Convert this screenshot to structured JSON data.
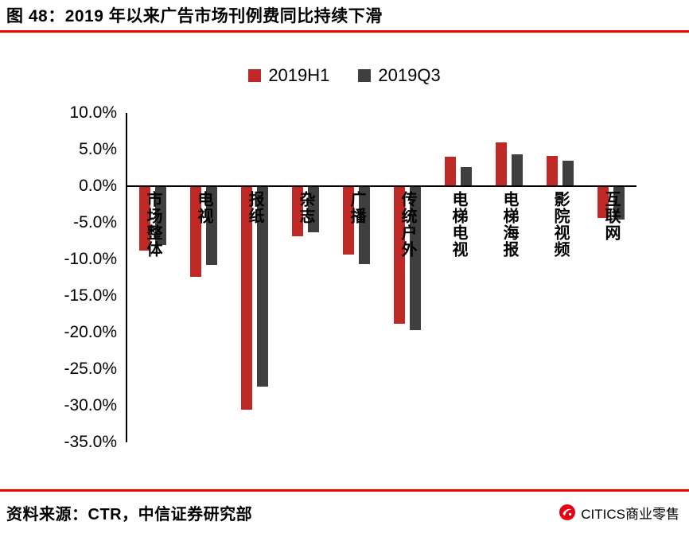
{
  "header": {
    "title": "图 48：2019 年以来广告市场刊例费同比持续下滑"
  },
  "footer": {
    "source": "资料来源：CTR，中信证券研究部",
    "logo_text": "CITICS商业零售"
  },
  "colors": {
    "accent": "#f70000",
    "series": [
      "#bf2825",
      "#3f3f3f"
    ],
    "axis": "#000000"
  },
  "chart_data": {
    "type": "bar",
    "title": "2019 年以来广告市场刊例费同比持续下滑",
    "categories": [
      "市场整体",
      "电视",
      "报纸",
      "杂志",
      "广播",
      "传统户外",
      "电梯电视",
      "电梯海报",
      "影院视频",
      "互联网"
    ],
    "series": [
      {
        "name": "2019H1",
        "values": [
          -8.8,
          -12.4,
          -30.5,
          -6.8,
          -9.4,
          -18.8,
          4.0,
          6.0,
          4.1,
          -4.3
        ]
      },
      {
        "name": "2019Q3",
        "values": [
          -8.0,
          -10.8,
          -27.4,
          -6.3,
          -10.6,
          -19.7,
          2.6,
          4.3,
          3.5,
          -4.6
        ]
      }
    ],
    "xlabel": "",
    "ylabel": "",
    "ylim": [
      -35,
      10
    ],
    "ytick_step": 5,
    "ytick_suffix": "%",
    "grid": false,
    "legend_position": "top-center"
  }
}
